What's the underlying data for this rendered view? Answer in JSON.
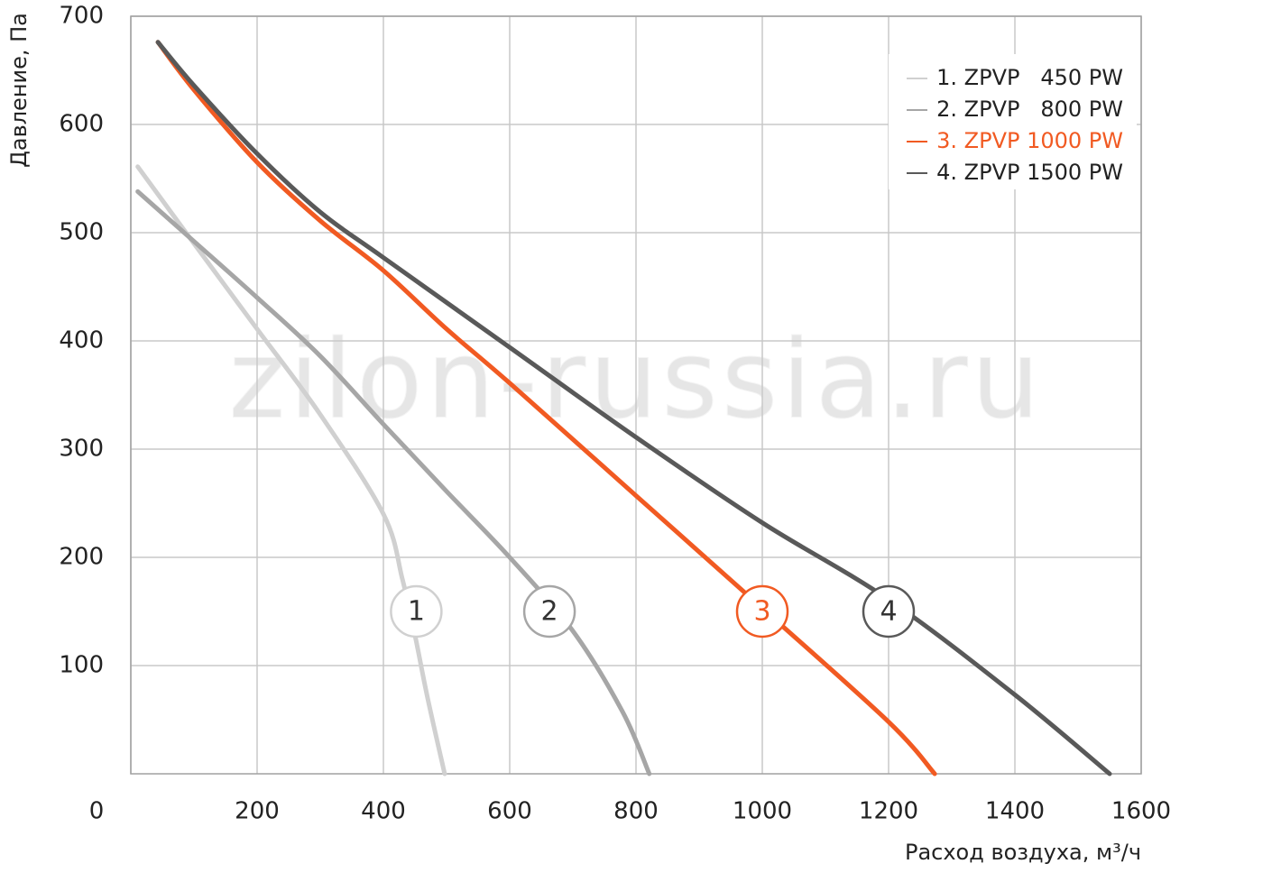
{
  "chart_data": {
    "type": "line",
    "y_label": "Давление, Па",
    "x_label": "Расход воздуха, м³/ч",
    "watermark": "zilon-russia.ru",
    "xlim": [
      0,
      1600
    ],
    "xticks": [
      0,
      200,
      400,
      600,
      800,
      1000,
      1200,
      1400,
      1600
    ],
    "ylim": [
      0,
      700
    ],
    "yticks": [
      100,
      200,
      300,
      400,
      500,
      600,
      700
    ],
    "grid": true,
    "legend": "upper right",
    "series": [
      {
        "name": "1. ZPVP   450 PW",
        "color": "#d0d0d0",
        "x": [
          11,
          100,
          200,
          300,
          400,
          430,
          450,
          470,
          497
        ],
        "values": [
          561,
          490,
          411,
          332,
          240,
          180,
          128,
          70,
          0
        ]
      },
      {
        "name": "2. ZPVP   800 PW",
        "color": "#a6a6a6",
        "x": [
          11,
          100,
          200,
          300,
          400,
          500,
          600,
          700,
          779,
          821
        ],
        "values": [
          538,
          492,
          440,
          386,
          323,
          261,
          200,
          132,
          57,
          0
        ]
      },
      {
        "name": "3. ZPVP 1000 PW",
        "color": "#f15a22",
        "x": [
          43,
          100,
          200,
          300,
          400,
          500,
          600,
          800,
          1000,
          1200,
          1273
        ],
        "values": [
          676,
          632,
          565,
          511,
          465,
          411,
          361,
          257,
          153,
          48,
          0
        ]
      },
      {
        "name": "4. ZPVP 1500 PW",
        "color": "#595959",
        "x": [
          43,
          100,
          200,
          300,
          400,
          600,
          800,
          1000,
          1200,
          1400,
          1550
        ],
        "values": [
          676,
          636,
          573,
          519,
          477,
          394,
          311,
          232,
          161,
          73,
          0
        ]
      }
    ],
    "annotations": [
      {
        "text": "1",
        "x": 452,
        "y": 150
      },
      {
        "text": "2",
        "x": 663,
        "y": 150
      },
      {
        "text": "3",
        "x": 1000,
        "y": 150
      },
      {
        "text": "4",
        "x": 1200,
        "y": 150
      }
    ]
  }
}
